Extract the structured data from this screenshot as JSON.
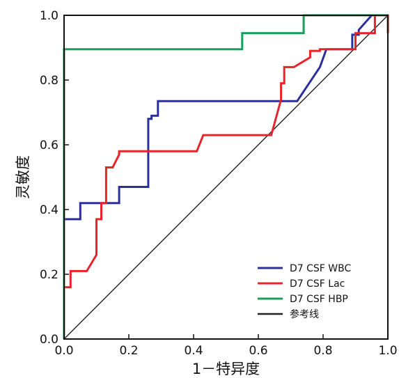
{
  "chart_data": {
    "type": "line",
    "title": "",
    "xlabel": "1－特异度",
    "ylabel": "灵敏度",
    "xlim": [
      0,
      1
    ],
    "ylim": [
      0,
      1
    ],
    "xticks": [
      "0.0",
      "0.2",
      "0.4",
      "0.6",
      "0.8",
      "1.0"
    ],
    "yticks": [
      "0.0",
      "0.2",
      "0.4",
      "0.6",
      "0.8",
      "1.0"
    ],
    "grid": false,
    "legend_position": "bottom-right",
    "series": [
      {
        "name": "D7 CSF WBC",
        "color": "#2b2f9e",
        "x": [
          0.0,
          0.0,
          0.05,
          0.05,
          0.17,
          0.17,
          0.26,
          0.26,
          0.27,
          0.27,
          0.29,
          0.29,
          0.72,
          0.79,
          0.81,
          0.89,
          0.89,
          0.91,
          0.91,
          0.95,
          1.0
        ],
        "y": [
          0.0,
          0.37,
          0.37,
          0.42,
          0.42,
          0.47,
          0.47,
          0.68,
          0.68,
          0.69,
          0.69,
          0.735,
          0.735,
          0.84,
          0.895,
          0.895,
          0.94,
          0.94,
          0.955,
          1.0,
          1.0
        ]
      },
      {
        "name": "D7 CSF Lac",
        "color": "#e8242b",
        "x": [
          0.0,
          0.0,
          0.02,
          0.02,
          0.07,
          0.07,
          0.1,
          0.1,
          0.115,
          0.115,
          0.13,
          0.13,
          0.15,
          0.15,
          0.17,
          0.17,
          0.41,
          0.41,
          0.43,
          0.43,
          0.64,
          0.64,
          0.67,
          0.67,
          0.68,
          0.68,
          0.71,
          0.71,
          0.76,
          0.76,
          0.79,
          0.79,
          0.9,
          0.9,
          0.96,
          0.96,
          1.0,
          1.0
        ],
        "y": [
          0.0,
          0.16,
          0.16,
          0.21,
          0.21,
          0.21,
          0.26,
          0.37,
          0.37,
          0.42,
          0.42,
          0.53,
          0.53,
          0.53,
          0.57,
          0.58,
          0.58,
          0.58,
          0.63,
          0.63,
          0.63,
          0.63,
          0.74,
          0.79,
          0.79,
          0.84,
          0.84,
          0.84,
          0.87,
          0.89,
          0.89,
          0.895,
          0.895,
          0.945,
          0.945,
          1.0,
          1.0,
          0.945
        ]
      },
      {
        "name": "D7 CSF HBP",
        "color": "#1a9e5a",
        "x": [
          0.0,
          0.0,
          0.55,
          0.55,
          0.74,
          0.74,
          1.0
        ],
        "y": [
          0.0,
          0.895,
          0.895,
          0.945,
          0.945,
          1.0,
          1.0
        ]
      },
      {
        "name": "参考线",
        "color": "#222222",
        "x": [
          0.0,
          1.0
        ],
        "y": [
          0.0,
          1.0
        ]
      }
    ]
  }
}
